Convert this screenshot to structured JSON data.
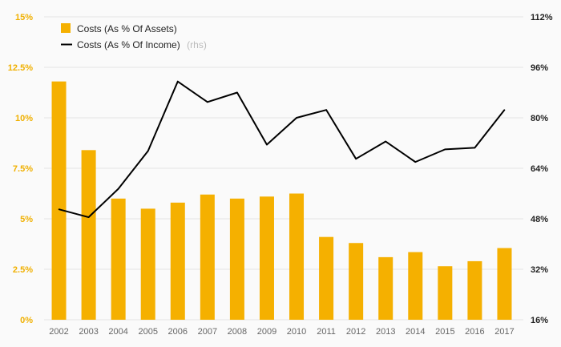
{
  "chart_data": {
    "type": "bar",
    "categories": [
      "2002",
      "2003",
      "2004",
      "2005",
      "2006",
      "2007",
      "2008",
      "2009",
      "2010",
      "2011",
      "2012",
      "2013",
      "2014",
      "2015",
      "2016",
      "2017"
    ],
    "series": [
      {
        "name": "Costs (As % Of Assets)",
        "type": "bar",
        "axis": "left",
        "color": "#f5b000",
        "values": [
          11.8,
          8.4,
          6.0,
          5.5,
          5.8,
          6.2,
          6.0,
          6.1,
          6.25,
          4.1,
          3.8,
          3.1,
          3.35,
          2.65,
          2.9,
          3.55
        ]
      },
      {
        "name": "Costs (As % Of Income)",
        "legend_suffix": "(rhs)",
        "type": "line",
        "axis": "right",
        "color": "#000000",
        "values": [
          51,
          48.5,
          57.5,
          69.5,
          91.5,
          85,
          88,
          71.5,
          80,
          82.5,
          67,
          72.5,
          66,
          70,
          70.5,
          82.5
        ]
      }
    ],
    "y_left": {
      "ylim": [
        0,
        15
      ],
      "ticks": [
        "0%",
        "2.5%",
        "5%",
        "7.5%",
        "10%",
        "12.5%",
        "15%"
      ],
      "color": "#f0b000"
    },
    "y_right": {
      "ylim": [
        16,
        112
      ],
      "ticks": [
        "16%",
        "32%",
        "48%",
        "64%",
        "80%",
        "96%",
        "112%"
      ]
    },
    "grid": true,
    "legend": {
      "placement": "top-left"
    }
  }
}
